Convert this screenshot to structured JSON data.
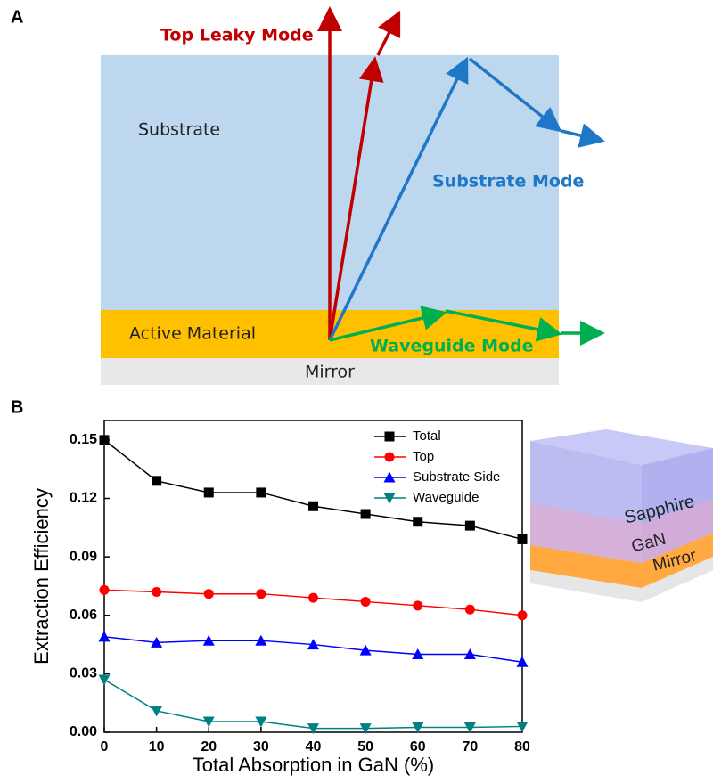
{
  "panel_a": {
    "label": "A",
    "top_leaky_mode": "Top Leaky Mode",
    "substrate": "Substrate",
    "substrate_mode": "Substrate Mode",
    "active_material": "Active Material",
    "waveguide_mode": "Waveguide Mode",
    "mirror": "Mirror"
  },
  "panel_b_label": "B",
  "panel_b_inset": {
    "sapphire": "Sapphire",
    "gan": "GaN",
    "mirror": "Mirror"
  },
  "chart_data": {
    "type": "line",
    "x_label": "Total Absorption in GaN (%)",
    "y_label": "Extraction Efficiency",
    "x": [
      0,
      10,
      20,
      30,
      40,
      50,
      60,
      70,
      80
    ],
    "xlim": [
      0,
      80
    ],
    "xticks": [
      0,
      10,
      20,
      30,
      40,
      50,
      60,
      70,
      80
    ],
    "ylim": [
      0,
      0.16
    ],
    "yticks": [
      {
        "value": 0,
        "label": "0.00"
      },
      0.03,
      0.06,
      0.09,
      0.12,
      0.15
    ],
    "legend": "upper right",
    "series": [
      {
        "name": "Total",
        "color": "#000000",
        "marker": "square",
        "values": [
          0.15,
          0.129,
          0.123,
          0.123,
          0.116,
          0.112,
          0.108,
          0.106,
          0.099
        ]
      },
      {
        "name": "Top",
        "color": "#ff0000",
        "marker": "circle",
        "values": [
          0.073,
          0.072,
          0.071,
          0.071,
          0.069,
          0.067,
          0.065,
          0.063,
          0.06
        ]
      },
      {
        "name": "Substrate Side",
        "color": "#0000ff",
        "marker": "triangle-up",
        "values": [
          0.049,
          0.046,
          0.047,
          0.047,
          0.045,
          0.042,
          0.04,
          0.04,
          0.036
        ]
      },
      {
        "name": "Waveguide",
        "color": "#008080",
        "marker": "triangle-down",
        "values": [
          0.027,
          0.011,
          0.0055,
          0.0055,
          0.002,
          0.002,
          0.0025,
          0.0025,
          0.003
        ]
      }
    ]
  }
}
